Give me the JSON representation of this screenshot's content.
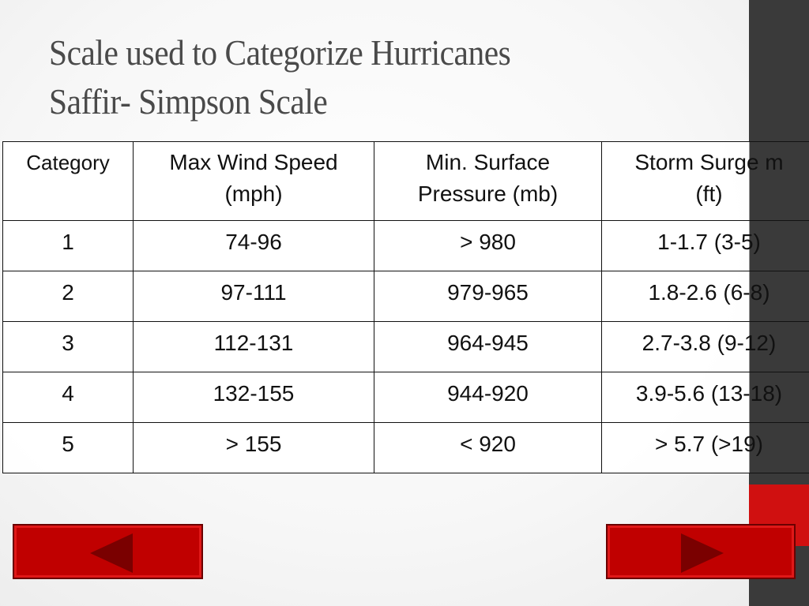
{
  "slide": {
    "title_line1": "Scale used to Categorize Hurricanes",
    "title_line2": "Saffir- Simpson Scale"
  },
  "table": {
    "headers": [
      {
        "line1": "Category",
        "line2": ""
      },
      {
        "line1": "Max Wind Speed",
        "line2": "(mph)"
      },
      {
        "line1": "Min. Surface",
        "line2": "Pressure (mb)"
      },
      {
        "line1": "Storm Surge m",
        "line2": "(ft)"
      }
    ],
    "rows": [
      [
        "1",
        "74-96",
        "> 980",
        "1-1.7 (3-5)"
      ],
      [
        "2",
        "97-111",
        "979-965",
        "1.8-2.6 (6-8)"
      ],
      [
        "3",
        "112-131",
        "964-945",
        "2.7-3.8 (9-12)"
      ],
      [
        "4",
        "132-155",
        "944-920",
        "3.9-5.6 (13-18)"
      ],
      [
        "5",
        "> 155",
        "< 920",
        "> 5.7 (>19)"
      ]
    ]
  },
  "navigation": {
    "prev_icon": "triangle-left-icon",
    "next_icon": "triangle-right-icon",
    "button_color": "#c00000",
    "arrow_color": "#7a0000"
  },
  "theme": {
    "sidebar_color": "#3a3a3a",
    "accent_color": "#d01010"
  }
}
